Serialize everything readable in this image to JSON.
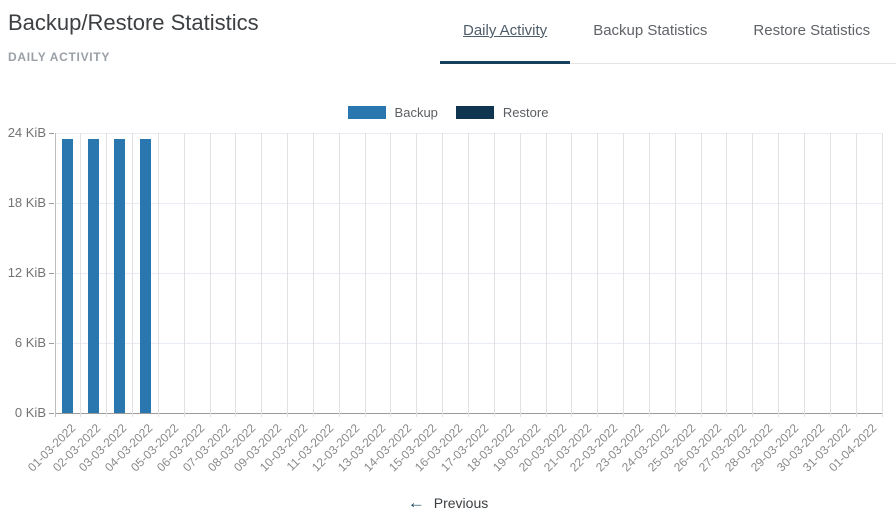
{
  "page": {
    "title": "Backup/Restore Statistics",
    "subtitle": "DAILY ACTIVITY"
  },
  "tabs": [
    {
      "label": "Daily Activity",
      "active": true
    },
    {
      "label": "Backup Statistics",
      "active": false
    },
    {
      "label": "Restore Statistics",
      "active": false
    }
  ],
  "legend": [
    {
      "label": "Backup",
      "color": "#2a77b0"
    },
    {
      "label": "Restore",
      "color": "#0f3551"
    }
  ],
  "footer": {
    "previous_label": "Previous"
  },
  "icons": {
    "previous_arrow": "arrow-left"
  },
  "colors": {
    "backup": "#2a77b0",
    "restore": "#0f3551",
    "active_tab_underline": "#16405e",
    "axis_line": "#9b9b9b",
    "gridline_vertical": "#e1e1e1",
    "gridline_horizontal": "#e7edf2"
  },
  "chart_data": {
    "type": "bar",
    "title": "Daily Activity",
    "xlabel": "",
    "ylabel": "",
    "ylim": [
      0,
      24
    ],
    "ytick_labels": [
      "0 KiB",
      "6 KiB",
      "12 KiB",
      "18 KiB",
      "24 KiB"
    ],
    "grid": true,
    "legend_position": "top-center",
    "categories": [
      "01-03-2022",
      "02-03-2022",
      "03-03-2022",
      "04-03-2022",
      "05-03-2022",
      "06-03-2022",
      "07-03-2022",
      "08-03-2022",
      "09-03-2022",
      "10-03-2022",
      "11-03-2022",
      "12-03-2022",
      "13-03-2022",
      "14-03-2022",
      "15-03-2022",
      "16-03-2022",
      "17-03-2022",
      "18-03-2022",
      "19-03-2022",
      "20-03-2022",
      "21-03-2022",
      "22-03-2022",
      "23-03-2022",
      "24-03-2022",
      "25-03-2022",
      "26-03-2022",
      "27-03-2022",
      "28-03-2022",
      "29-03-2022",
      "30-03-2022",
      "31-03-2022",
      "01-04-2022"
    ],
    "series": [
      {
        "name": "Backup",
        "color": "#2a77b0",
        "unit": "KiB",
        "values": [
          23.5,
          23.5,
          23.5,
          23.5,
          0,
          0,
          0,
          0,
          0,
          0,
          0,
          0,
          0,
          0,
          0,
          0,
          0,
          0,
          0,
          0,
          0,
          0,
          0,
          0,
          0,
          0,
          0,
          0,
          0,
          0,
          0,
          0
        ]
      },
      {
        "name": "Restore",
        "color": "#0f3551",
        "unit": "KiB",
        "values": [
          0,
          0,
          0,
          0,
          0,
          0,
          0,
          0,
          0,
          0,
          0,
          0,
          0,
          0,
          0,
          0,
          0,
          0,
          0,
          0,
          0,
          0,
          0,
          0,
          0,
          0,
          0,
          0,
          0,
          0,
          0,
          0
        ]
      }
    ]
  }
}
